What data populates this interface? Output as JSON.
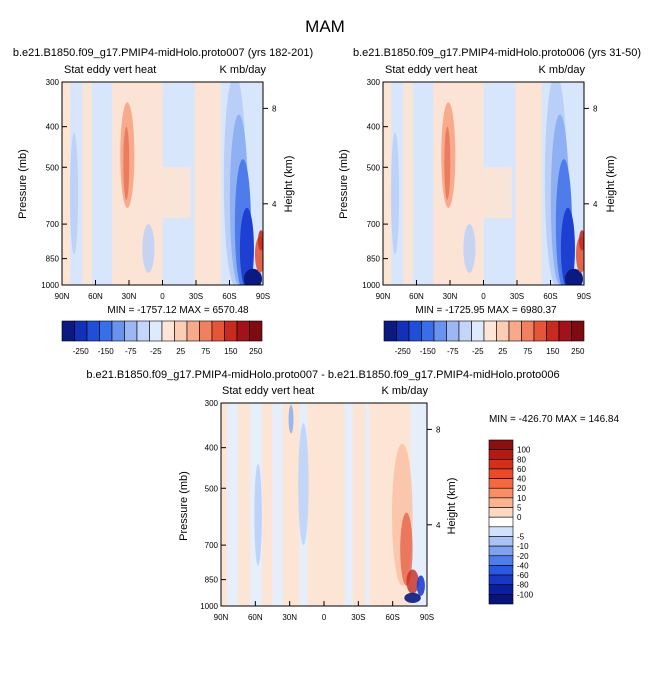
{
  "figure": {
    "title": "MAM"
  },
  "chart_data": [
    {
      "type": "heatmap",
      "title": "b.e21.B1850.f09_g17.PMIP4-midHolo.proto007 (yrs 182-201)",
      "left_label": "Stat eddy vert heat",
      "right_label": "K mb/day",
      "ylabel": "Pressure (mb)",
      "ylabel_right": "Height (km)",
      "x_ticks": [
        "90N",
        "60N",
        "30N",
        "0",
        "30S",
        "60S",
        "90S"
      ],
      "y_ticks": [
        "300",
        "400",
        "500",
        "700",
        "850",
        "1000"
      ],
      "y_right_ticks": [
        "8",
        "4"
      ],
      "stats": "MIN = -1757.12   MAX = 6570.48",
      "colorbar": {
        "orientation": "horizontal",
        "tick_labels": [
          "-250",
          "-150",
          "-75",
          "-25",
          "25",
          "75",
          "150",
          "250"
        ],
        "colors": [
          "#0b1a80",
          "#1330b8",
          "#1f4fd9",
          "#3a6ee8",
          "#6a93f0",
          "#9bb8f5",
          "#c3d6fa",
          "#dfeafd",
          "#fde6d8",
          "#fbcdb3",
          "#f7a98a",
          "#f1805f",
          "#e4553a",
          "#c72b1f",
          "#a3121a",
          "#7e0b12"
        ]
      }
    },
    {
      "type": "heatmap",
      "title": "b.e21.B1850.f09_g17.PMIP4-midHolo.proto006 (yrs 31-50)",
      "left_label": "Stat eddy vert heat",
      "right_label": "K mb/day",
      "ylabel": "Pressure (mb)",
      "ylabel_right": "Height (km)",
      "x_ticks": [
        "90N",
        "60N",
        "30N",
        "0",
        "30S",
        "60S",
        "90S"
      ],
      "y_ticks": [
        "300",
        "400",
        "500",
        "700",
        "850",
        "1000"
      ],
      "y_right_ticks": [
        "8",
        "4"
      ],
      "stats": "MIN = -1725.95   MAX = 6980.37",
      "colorbar": {
        "orientation": "horizontal",
        "tick_labels": [
          "-250",
          "-150",
          "-75",
          "-25",
          "25",
          "75",
          "150",
          "250"
        ],
        "colors": [
          "#0b1a80",
          "#1330b8",
          "#1f4fd9",
          "#3a6ee8",
          "#6a93f0",
          "#9bb8f5",
          "#c3d6fa",
          "#dfeafd",
          "#fde6d8",
          "#fbcdb3",
          "#f7a98a",
          "#f1805f",
          "#e4553a",
          "#c72b1f",
          "#a3121a",
          "#7e0b12"
        ]
      }
    },
    {
      "type": "heatmap",
      "title": "b.e21.B1850.f09_g17.PMIP4-midHolo.proto007 - b.e21.B1850.f09_g17.PMIP4-midHolo.proto006",
      "left_label": "Stat eddy vert heat",
      "right_label": "K mb/day",
      "ylabel": "Pressure (mb)",
      "ylabel_right": "Height (km)",
      "x_ticks": [
        "90N",
        "60N",
        "30N",
        "0",
        "30S",
        "60S",
        "90S"
      ],
      "y_ticks": [
        "300",
        "400",
        "500",
        "700",
        "850",
        "1000"
      ],
      "y_right_ticks": [
        "8",
        "4"
      ],
      "stats": "MIN = -426.70   MAX = 146.84",
      "colorbar": {
        "orientation": "vertical",
        "tick_labels": [
          "100",
          "80",
          "60",
          "40",
          "20",
          "10",
          "5",
          "0",
          "-5",
          "-10",
          "-20",
          "-40",
          "-60",
          "-80",
          "-100"
        ],
        "colors": [
          "#8a0f0f",
          "#b31a14",
          "#d42e1c",
          "#ea4a2a",
          "#f5693f",
          "#f98d66",
          "#fbb392",
          "#fdd9c3",
          "#ffffff",
          "#d2e1fb",
          "#a9c3f7",
          "#7ea2f1",
          "#4f7ceb",
          "#2a58e2",
          "#1737c5",
          "#0a1f9e",
          "#06137a"
        ]
      }
    }
  ]
}
